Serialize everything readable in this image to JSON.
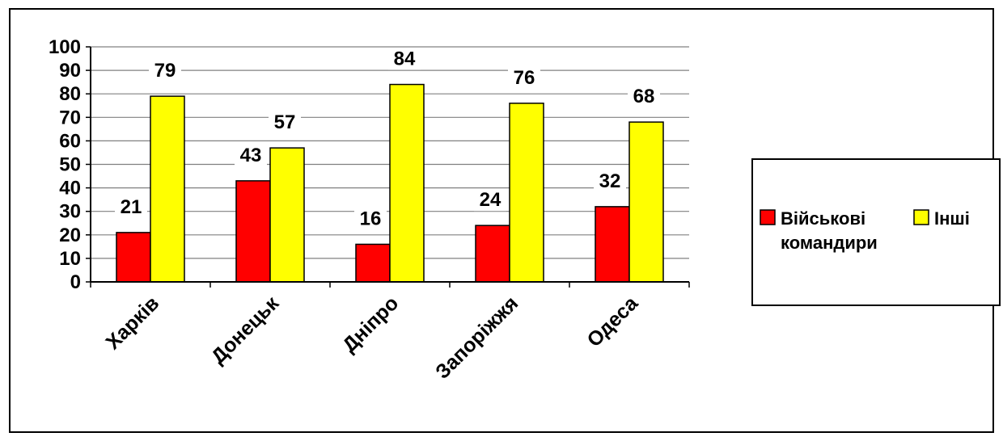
{
  "chart_data": {
    "type": "bar",
    "categories": [
      "Харків",
      "Донецьк",
      "Дніпро",
      "Запоріжжя",
      "Одеса"
    ],
    "series": [
      {
        "name": "Військові командири",
        "name_lines": [
          "Військові",
          "командири"
        ],
        "values": [
          21,
          43,
          16,
          24,
          32
        ],
        "color": "#ff0000"
      },
      {
        "name": "Інші",
        "name_lines": [
          "Інші"
        ],
        "values": [
          79,
          57,
          84,
          76,
          68
        ],
        "color": "#ffff00"
      }
    ],
    "y_ticks": [
      "0",
      "10",
      "20",
      "30",
      "40",
      "50",
      "60",
      "70",
      "80",
      "90",
      "100"
    ],
    "ylim": [
      0,
      100
    ],
    "grid": true,
    "legend_position": "right",
    "data_labels": true
  }
}
